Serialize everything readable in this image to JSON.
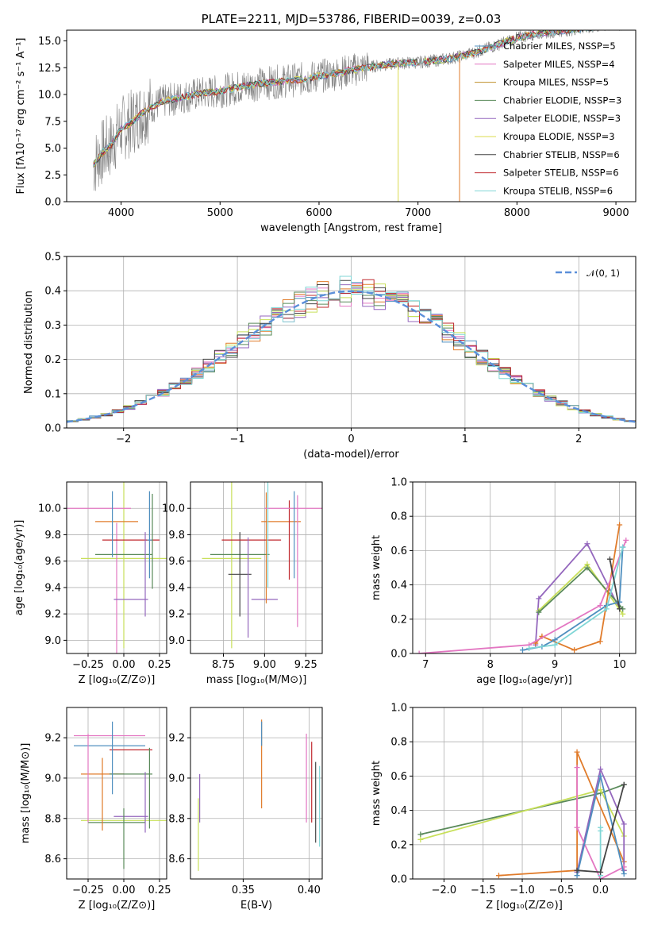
{
  "chart_data": [
    {
      "id": "spectrum",
      "type": "line",
      "title": "PLATE=2211, MJD=53786, FIBERID=0039, z=0.03",
      "xlabel": "wavelength [Angstrom, rest frame]",
      "ylabel": "Flux [fλ10⁻¹⁷ erg cm⁻² s⁻¹ A⁻¹]",
      "xlim": [
        3450,
        9200
      ],
      "ylim": [
        0,
        16
      ],
      "xticks": [
        "4000",
        "5000",
        "6000",
        "7000",
        "8000",
        "9000"
      ],
      "yticks": [
        "0.0",
        "2.5",
        "5.0",
        "7.5",
        "10.0",
        "12.5",
        "15.0"
      ],
      "legend_position": "top-right",
      "series": [
        {
          "name": "Chabrier MILES, N_SSP=5",
          "color": "#4f8fbf"
        },
        {
          "name": "Salpeter MILES, N_SSP=4",
          "color": "#e377c2"
        },
        {
          "name": "Kroupa MILES, N_SSP=5",
          "color": "#bf8f2a"
        },
        {
          "name": "Chabrier ELODIE, N_SSP=3",
          "color": "#5a8a5a"
        },
        {
          "name": "Salpeter ELODIE, N_SSP=3",
          "color": "#9467bd"
        },
        {
          "name": "Kroupa ELODIE, N_SSP=3",
          "color": "#dbdb4d"
        },
        {
          "name": "Chabrier STELIB, N_SSP=6",
          "color": "#444444"
        },
        {
          "name": "Salpeter STELIB, N_SSP=6",
          "color": "#c0282e"
        },
        {
          "name": "Kroupa STELIB, N_SSP=6",
          "color": "#7fd6d6"
        }
      ],
      "observed": {
        "color": "#808080",
        "x": [
          3720,
          3800,
          3900,
          4000,
          4100,
          4200,
          4400,
          4600,
          4800,
          5000,
          5200,
          5400,
          5600,
          5800,
          6000,
          6200,
          6400,
          6600,
          6800,
          7000,
          7200,
          7400,
          7600,
          7800,
          8000,
          8200,
          8400,
          8600,
          8800,
          9000,
          9150
        ],
        "y": [
          3.4,
          4.5,
          5.3,
          6.8,
          7.3,
          8.2,
          9.3,
          9.7,
          10.1,
          10.3,
          10.7,
          11.0,
          11.2,
          11.4,
          11.7,
          12.0,
          12.4,
          12.7,
          12.9,
          13.0,
          13.2,
          13.5,
          14.0,
          14.6,
          15.3,
          15.7,
          15.9,
          16.1,
          16.3,
          16.5,
          16.6
        ]
      }
    },
    {
      "id": "residuals",
      "type": "line",
      "xlabel": "(data-model)/error",
      "ylabel": "Normed distribution",
      "xlim": [
        -2.5,
        2.5
      ],
      "ylim": [
        0,
        0.5
      ],
      "xticks": [
        "−2",
        "−1",
        "0",
        "1",
        "2"
      ],
      "yticks": [
        "0.0",
        "0.1",
        "0.2",
        "0.3",
        "0.4",
        "0.5"
      ],
      "legend_position": "top-right",
      "reference": {
        "name": "𝒩(0, 1)",
        "color": "#5b8fd9"
      },
      "series_colors": [
        "#4f8fbf",
        "#e377c2",
        "#e07b2a",
        "#5a8a5a",
        "#9467bd",
        "#c8e05a",
        "#444444",
        "#c0282e",
        "#7fd6d6"
      ]
    },
    {
      "id": "age-vs-Z",
      "type": "scatter",
      "xlabel": "Z [log₁₀(Z/Z⊙)]",
      "ylabel": "age  [log₁₀(age/yr)]",
      "xlim": [
        -0.4,
        0.3
      ],
      "ylim": [
        8.9,
        10.2
      ],
      "xticks": [
        "−0.25",
        "0.00",
        "0.25"
      ],
      "yticks": [
        "9.0",
        "9.2",
        "9.4",
        "9.6",
        "9.8",
        "10.0"
      ],
      "points": [
        {
          "x": 0.0,
          "y": 9.62,
          "xerr": 0.3,
          "yerr": 0.68,
          "color": "#c8e05a"
        },
        {
          "x": -0.05,
          "y": 9.31,
          "xerr": 0.0,
          "yerr": 0.58,
          "color": "#e377c2"
        },
        {
          "x": -0.2,
          "y": 10.0,
          "xerr": 0.25,
          "yerr": 0.0,
          "color": "#e377c2"
        },
        {
          "x": -0.05,
          "y": 9.9,
          "xerr": 0.15,
          "yerr": 0.0,
          "color": "#e07b2a"
        },
        {
          "x": 0.05,
          "y": 9.76,
          "xerr": 0.2,
          "yerr": 0.0,
          "color": "#c0282e"
        },
        {
          "x": 0.18,
          "y": 9.76,
          "xerr": 0.0,
          "yerr": 0.0,
          "color": "#4f8fbf"
        },
        {
          "x": 0.0,
          "y": 9.65,
          "xerr": 0.2,
          "yerr": 0.0,
          "color": "#5a8a5a"
        },
        {
          "x": 0.05,
          "y": 9.31,
          "xerr": 0.12,
          "yerr": 0.0,
          "color": "#9467bd"
        },
        {
          "x": 0.15,
          "y": 9.5,
          "xerr": 0.0,
          "yerr": 0.32,
          "color": "#9467bd"
        },
        {
          "x": 0.2,
          "y": 9.75,
          "xerr": 0.0,
          "yerr": 0.36,
          "color": "#5a8a5a"
        },
        {
          "x": 0.18,
          "y": 9.8,
          "xerr": 0.0,
          "yerr": 0.33,
          "color": "#4f8fbf"
        },
        {
          "x": -0.08,
          "y": 9.88,
          "xerr": 0.0,
          "yerr": 0.25,
          "color": "#4f8fbf"
        }
      ]
    },
    {
      "id": "age-vs-mass",
      "type": "scatter",
      "xlabel": "mass [log₁₀(M/M⊙)]",
      "xlim": [
        8.55,
        9.35
      ],
      "ylim": [
        8.9,
        10.2
      ],
      "xticks": [
        "8.75",
        "9.00",
        "9.25"
      ],
      "yticks": [
        "9.0",
        "9.2",
        "9.4",
        "9.6",
        "9.8",
        "10.0"
      ],
      "points": [
        {
          "x": 8.8,
          "y": 9.62,
          "xerr": 0.18,
          "yerr": 0.68,
          "color": "#c8e05a"
        },
        {
          "x": 8.85,
          "y": 9.65,
          "xerr": 0.18,
          "yerr": 0.0,
          "color": "#5a8a5a"
        },
        {
          "x": 8.85,
          "y": 9.5,
          "xerr": 0.07,
          "yerr": 0.32,
          "color": "#444444"
        },
        {
          "x": 8.92,
          "y": 9.76,
          "xerr": 0.18,
          "yerr": 0.0,
          "color": "#c0282e"
        },
        {
          "x": 8.9,
          "y": 9.4,
          "xerr": 0.0,
          "yerr": 0.38,
          "color": "#9467bd"
        },
        {
          "x": 9.0,
          "y": 9.31,
          "xerr": 0.08,
          "yerr": 0.0,
          "color": "#9467bd"
        },
        {
          "x": 9.01,
          "y": 9.7,
          "xerr": 0.0,
          "yerr": 0.42,
          "color": "#e07b2a"
        },
        {
          "x": 9.1,
          "y": 9.9,
          "xerr": 0.12,
          "yerr": 0.0,
          "color": "#e07b2a"
        },
        {
          "x": 9.15,
          "y": 9.76,
          "xerr": 0.0,
          "yerr": 0.3,
          "color": "#c0282e"
        },
        {
          "x": 9.2,
          "y": 10.0,
          "xerr": 0.2,
          "yerr": 0.0,
          "color": "#e377c2"
        },
        {
          "x": 9.2,
          "y": 9.6,
          "xerr": 0.0,
          "yerr": 0.5,
          "color": "#e377c2"
        },
        {
          "x": 9.18,
          "y": 9.8,
          "xerr": 0.0,
          "yerr": 0.33,
          "color": "#4f8fbf"
        },
        {
          "x": 9.02,
          "y": 9.8,
          "xerr": 0.0,
          "yerr": 0.4,
          "color": "#7fd6d6"
        }
      ]
    },
    {
      "id": "mass-weight-vs-age",
      "type": "line",
      "xlabel": "age  [log₁₀(age/yr)]",
      "ylabel": "mass weight",
      "xlim": [
        6.8,
        10.25
      ],
      "ylim": [
        0,
        1.0
      ],
      "xticks": [
        "7",
        "8",
        "9",
        "10"
      ],
      "yticks": [
        "0.0",
        "0.2",
        "0.4",
        "0.6",
        "0.8",
        "1.0"
      ],
      "series": [
        {
          "color": "#9467bd",
          "x": [
            8.7,
            8.75,
            9.5,
            10.0
          ],
          "y": [
            0.05,
            0.32,
            0.64,
            0.26
          ]
        },
        {
          "color": "#c8e05a",
          "x": [
            8.75,
            9.5,
            10.05
          ],
          "y": [
            0.25,
            0.52,
            0.23
          ]
        },
        {
          "color": "#5a8a5a",
          "x": [
            8.75,
            9.5,
            10.05
          ],
          "y": [
            0.24,
            0.5,
            0.26
          ]
        },
        {
          "color": "#e07b2a",
          "x": [
            8.7,
            8.8,
            9.3,
            9.7,
            10.0
          ],
          "y": [
            0.06,
            0.1,
            0.02,
            0.07,
            0.75
          ]
        },
        {
          "color": "#e377c2",
          "x": [
            6.9,
            8.6,
            9.7,
            10.1
          ],
          "y": [
            0.0,
            0.05,
            0.28,
            0.66
          ]
        },
        {
          "color": "#4f8fbf",
          "x": [
            8.5,
            8.8,
            9.0,
            9.8,
            10.0,
            10.05
          ],
          "y": [
            0.02,
            0.04,
            0.08,
            0.28,
            0.3,
            0.62
          ]
        },
        {
          "color": "#7fd6d6",
          "x": [
            8.6,
            9.0,
            9.8,
            10.05
          ],
          "y": [
            0.03,
            0.05,
            0.26,
            0.62
          ]
        },
        {
          "color": "#444444",
          "x": [
            9.85,
            10.0
          ],
          "y": [
            0.55,
            0.26
          ]
        }
      ]
    },
    {
      "id": "mass-vs-Z",
      "type": "scatter",
      "xlabel": "Z [log₁₀(Z/Z⊙)]",
      "ylabel": "mass [log₁₀(M/M⊙)]",
      "xlim": [
        -0.4,
        0.3
      ],
      "ylim": [
        8.5,
        9.35
      ],
      "xticks": [
        "−0.25",
        "0.00",
        "0.25"
      ],
      "yticks": [
        "8.6",
        "8.8",
        "9.0",
        "9.2"
      ],
      "points": [
        {
          "x": -0.1,
          "y": 9.21,
          "xerr": 0.25,
          "yerr": 0.0,
          "color": "#e377c2"
        },
        {
          "x": -0.1,
          "y": 9.16,
          "xerr": 0.25,
          "yerr": 0.0,
          "color": "#4f8fbf"
        },
        {
          "x": 0.05,
          "y": 9.14,
          "xerr": 0.15,
          "yerr": 0.0,
          "color": "#c0282e"
        },
        {
          "x": -0.15,
          "y": 9.02,
          "xerr": 0.15,
          "yerr": 0.0,
          "color": "#e07b2a"
        },
        {
          "x": 0.05,
          "y": 9.02,
          "xerr": 0.15,
          "yerr": 0.0,
          "color": "#5a8a5a"
        },
        {
          "x": 0.05,
          "y": 8.81,
          "xerr": 0.12,
          "yerr": 0.0,
          "color": "#9467bd"
        },
        {
          "x": 0.0,
          "y": 8.79,
          "xerr": 0.3,
          "yerr": 0.0,
          "color": "#c8e05a"
        },
        {
          "x": -0.05,
          "y": 8.78,
          "xerr": 0.2,
          "yerr": 0.0,
          "color": "#5a8a5a"
        },
        {
          "x": -0.25,
          "y": 9.0,
          "xerr": 0.0,
          "yerr": 0.22,
          "color": "#e377c2"
        },
        {
          "x": -0.08,
          "y": 9.1,
          "xerr": 0.0,
          "yerr": 0.18,
          "color": "#4f8fbf"
        },
        {
          "x": -0.15,
          "y": 8.92,
          "xerr": 0.0,
          "yerr": 0.18,
          "color": "#e07b2a"
        },
        {
          "x": 0.0,
          "y": 8.7,
          "xerr": 0.0,
          "yerr": 0.15,
          "color": "#5a8a5a"
        },
        {
          "x": 0.15,
          "y": 8.88,
          "xerr": 0.0,
          "yerr": 0.15,
          "color": "#9467bd"
        },
        {
          "x": 0.18,
          "y": 8.95,
          "xerr": 0.0,
          "yerr": 0.2,
          "color": "#5a8a5a"
        }
      ]
    },
    {
      "id": "mass-vs-EBV",
      "type": "scatter",
      "xlabel": "E(B-V)",
      "xlim": [
        0.31,
        0.41
      ],
      "ylim": [
        8.5,
        9.35
      ],
      "xticks": [
        "0.35",
        "0.40"
      ],
      "yticks": [
        "8.6",
        "8.8",
        "9.0",
        "9.2"
      ],
      "points": [
        {
          "x": 0.317,
          "y": 8.9,
          "xerr": 0.0,
          "yerr": 0.12,
          "color": "#9467bd"
        },
        {
          "x": 0.316,
          "y": 8.72,
          "xerr": 0.0,
          "yerr": 0.18,
          "color": "#c8e05a"
        },
        {
          "x": 0.364,
          "y": 9.07,
          "xerr": 0.0,
          "yerr": 0.22,
          "color": "#e07b2a"
        },
        {
          "x": 0.364,
          "y": 9.22,
          "xerr": 0.0,
          "yerr": 0.06,
          "color": "#4f8fbf"
        },
        {
          "x": 0.398,
          "y": 9.0,
          "xerr": 0.0,
          "yerr": 0.22,
          "color": "#e377c2"
        },
        {
          "x": 0.402,
          "y": 8.98,
          "xerr": 0.0,
          "yerr": 0.2,
          "color": "#c0282e"
        },
        {
          "x": 0.405,
          "y": 8.88,
          "xerr": 0.0,
          "yerr": 0.2,
          "color": "#444444"
        },
        {
          "x": 0.408,
          "y": 8.86,
          "xerr": 0.0,
          "yerr": 0.2,
          "color": "#7fd6d6"
        }
      ]
    },
    {
      "id": "mass-weight-vs-Z",
      "type": "line",
      "xlabel": "Z [log₁₀(Z/Z⊙)]",
      "ylabel": "mass weight",
      "xlim": [
        -2.4,
        0.45
      ],
      "ylim": [
        0,
        1.0
      ],
      "xticks": [
        "−2.0",
        "−1.5",
        "−1.0",
        "−0.5",
        "0.0"
      ],
      "yticks": [
        "0.0",
        "0.2",
        "0.4",
        "0.6",
        "0.8",
        "1.0"
      ],
      "series": [
        {
          "color": "#5a8a5a",
          "x": [
            -2.3,
            0.0,
            0.3
          ],
          "y": [
            0.26,
            0.5,
            0.55
          ]
        },
        {
          "color": "#c8e05a",
          "x": [
            -2.3,
            0.0,
            0.3
          ],
          "y": [
            0.23,
            0.52,
            0.25
          ]
        },
        {
          "color": "#e07b2a",
          "x": [
            -1.3,
            -0.3,
            -0.3,
            0.3,
            0.3
          ],
          "y": [
            0.02,
            0.05,
            0.74,
            0.1,
            0.05
          ]
        },
        {
          "color": "#9467bd",
          "x": [
            -0.3,
            0.0,
            0.3,
            0.3
          ],
          "y": [
            0.04,
            0.64,
            0.32,
            0.05
          ]
        },
        {
          "color": "#e377c2",
          "x": [
            -0.3,
            -0.3,
            0.0,
            0.3
          ],
          "y": [
            0.65,
            0.3,
            0.0,
            0.07
          ]
        },
        {
          "color": "#4f8fbf",
          "x": [
            -0.3,
            0.0,
            0.3
          ],
          "y": [
            0.02,
            0.6,
            0.03
          ]
        },
        {
          "color": "#7fd6d6",
          "x": [
            0.0,
            0.0,
            0.0
          ],
          "y": [
            0.02,
            0.3,
            0.28
          ]
        },
        {
          "color": "#444444",
          "x": [
            -0.3,
            0.0,
            0.3
          ],
          "y": [
            0.05,
            0.04,
            0.55
          ]
        }
      ]
    }
  ]
}
